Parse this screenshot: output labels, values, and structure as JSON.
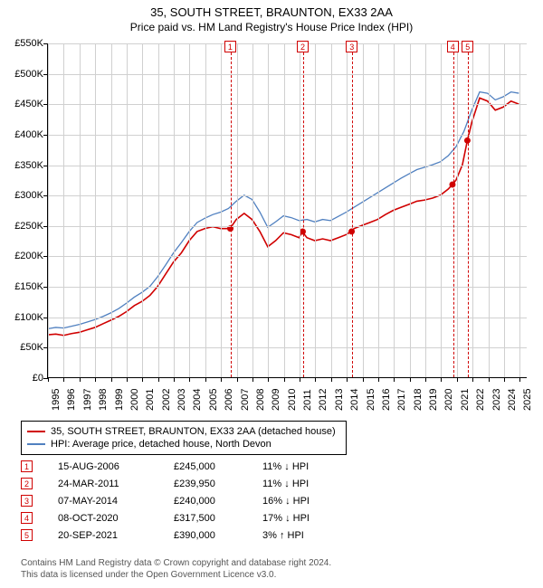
{
  "title": "35, SOUTH STREET, BRAUNTON, EX33 2AA",
  "subtitle": "Price paid vs. HM Land Registry's House Price Index (HPI)",
  "chart": {
    "type": "line",
    "x_start_year": 1995,
    "x_end_year": 2025.5,
    "xticks": [
      1995,
      1996,
      1997,
      1998,
      1999,
      2000,
      2001,
      2002,
      2003,
      2004,
      2005,
      2006,
      2007,
      2008,
      2009,
      2010,
      2011,
      2012,
      2013,
      2014,
      2015,
      2016,
      2017,
      2018,
      2019,
      2020,
      2021,
      2022,
      2023,
      2024,
      2025
    ],
    "ylim": [
      0,
      550000
    ],
    "ytick_step": 50000,
    "ylabels": [
      "£0",
      "£50K",
      "£100K",
      "£150K",
      "£200K",
      "£250K",
      "£300K",
      "£350K",
      "£400K",
      "£450K",
      "£500K",
      "£550K"
    ],
    "background_color": "#ffffff",
    "grid_color": "#d0d0d0",
    "axis_color": "#000000",
    "label_fontsize": 11,
    "title_fontsize": 13,
    "subtitle_fontsize": 12,
    "series": [
      {
        "name": "35, SOUTH STREET, BRAUNTON, EX33 2AA (detached house)",
        "color": "#d00000",
        "line_width": 1.6,
        "data": [
          [
            1995.0,
            70000
          ],
          [
            1995.5,
            71000
          ],
          [
            1996.0,
            69000
          ],
          [
            1996.5,
            72000
          ],
          [
            1997.0,
            74000
          ],
          [
            1997.5,
            78000
          ],
          [
            1998.0,
            82000
          ],
          [
            1998.5,
            88000
          ],
          [
            1999.0,
            94000
          ],
          [
            1999.5,
            100000
          ],
          [
            2000.0,
            108000
          ],
          [
            2000.5,
            118000
          ],
          [
            2001.0,
            125000
          ],
          [
            2001.5,
            135000
          ],
          [
            2002.0,
            150000
          ],
          [
            2002.5,
            170000
          ],
          [
            2003.0,
            190000
          ],
          [
            2003.5,
            205000
          ],
          [
            2004.0,
            225000
          ],
          [
            2004.5,
            240000
          ],
          [
            2005.0,
            245000
          ],
          [
            2005.5,
            248000
          ],
          [
            2006.0,
            245000
          ],
          [
            2006.6,
            245000
          ],
          [
            2007.0,
            260000
          ],
          [
            2007.5,
            270000
          ],
          [
            2008.0,
            260000
          ],
          [
            2008.5,
            240000
          ],
          [
            2009.0,
            215000
          ],
          [
            2009.5,
            225000
          ],
          [
            2010.0,
            238000
          ],
          [
            2010.5,
            235000
          ],
          [
            2011.0,
            230000
          ],
          [
            2011.2,
            239950
          ],
          [
            2011.5,
            230000
          ],
          [
            2012.0,
            225000
          ],
          [
            2012.5,
            228000
          ],
          [
            2013.0,
            225000
          ],
          [
            2013.5,
            230000
          ],
          [
            2014.0,
            235000
          ],
          [
            2014.3,
            240000
          ],
          [
            2014.5,
            245000
          ],
          [
            2015.0,
            250000
          ],
          [
            2015.5,
            255000
          ],
          [
            2016.0,
            260000
          ],
          [
            2016.5,
            268000
          ],
          [
            2017.0,
            275000
          ],
          [
            2017.5,
            280000
          ],
          [
            2018.0,
            285000
          ],
          [
            2018.5,
            290000
          ],
          [
            2019.0,
            292000
          ],
          [
            2019.5,
            295000
          ],
          [
            2020.0,
            300000
          ],
          [
            2020.5,
            310000
          ],
          [
            2020.77,
            317500
          ],
          [
            2021.0,
            325000
          ],
          [
            2021.4,
            350000
          ],
          [
            2021.72,
            390000
          ],
          [
            2022.0,
            420000
          ],
          [
            2022.5,
            460000
          ],
          [
            2023.0,
            455000
          ],
          [
            2023.5,
            440000
          ],
          [
            2024.0,
            445000
          ],
          [
            2024.5,
            455000
          ],
          [
            2025.0,
            450000
          ]
        ]
      },
      {
        "name": "HPI: Average price, detached house, North Devon",
        "color": "#5080c0",
        "line_width": 1.3,
        "data": [
          [
            1995.0,
            80000
          ],
          [
            1995.5,
            82000
          ],
          [
            1996.0,
            81000
          ],
          [
            1996.5,
            84000
          ],
          [
            1997.0,
            87000
          ],
          [
            1997.5,
            91000
          ],
          [
            1998.0,
            95000
          ],
          [
            1998.5,
            100000
          ],
          [
            1999.0,
            106000
          ],
          [
            1999.5,
            113000
          ],
          [
            2000.0,
            122000
          ],
          [
            2000.5,
            132000
          ],
          [
            2001.0,
            140000
          ],
          [
            2001.5,
            150000
          ],
          [
            2002.0,
            166000
          ],
          [
            2002.5,
            185000
          ],
          [
            2003.0,
            205000
          ],
          [
            2003.5,
            222000
          ],
          [
            2004.0,
            240000
          ],
          [
            2004.5,
            255000
          ],
          [
            2005.0,
            262000
          ],
          [
            2005.5,
            268000
          ],
          [
            2006.0,
            272000
          ],
          [
            2006.5,
            278000
          ],
          [
            2007.0,
            290000
          ],
          [
            2007.5,
            300000
          ],
          [
            2008.0,
            293000
          ],
          [
            2008.5,
            272000
          ],
          [
            2009.0,
            247000
          ],
          [
            2009.5,
            256000
          ],
          [
            2010.0,
            266000
          ],
          [
            2010.5,
            263000
          ],
          [
            2011.0,
            258000
          ],
          [
            2011.5,
            260000
          ],
          [
            2012.0,
            256000
          ],
          [
            2012.5,
            260000
          ],
          [
            2013.0,
            258000
          ],
          [
            2013.5,
            265000
          ],
          [
            2014.0,
            272000
          ],
          [
            2014.5,
            280000
          ],
          [
            2015.0,
            288000
          ],
          [
            2015.5,
            296000
          ],
          [
            2016.0,
            304000
          ],
          [
            2016.5,
            312000
          ],
          [
            2017.0,
            320000
          ],
          [
            2017.5,
            328000
          ],
          [
            2018.0,
            335000
          ],
          [
            2018.5,
            342000
          ],
          [
            2019.0,
            346000
          ],
          [
            2019.5,
            350000
          ],
          [
            2020.0,
            355000
          ],
          [
            2020.5,
            365000
          ],
          [
            2021.0,
            380000
          ],
          [
            2021.5,
            405000
          ],
          [
            2022.0,
            440000
          ],
          [
            2022.5,
            470000
          ],
          [
            2023.0,
            468000
          ],
          [
            2023.5,
            457000
          ],
          [
            2024.0,
            462000
          ],
          [
            2024.5,
            470000
          ],
          [
            2025.0,
            468000
          ]
        ]
      }
    ],
    "markers": [
      {
        "n": "1",
        "year": 2006.62,
        "price": 245000,
        "date": "15-AUG-2006",
        "delta": "11%",
        "dir": "down",
        "vs": "HPI"
      },
      {
        "n": "2",
        "year": 2011.23,
        "price": 239950,
        "date": "24-MAR-2011",
        "delta": "11%",
        "dir": "down",
        "vs": "HPI"
      },
      {
        "n": "3",
        "year": 2014.35,
        "price": 240000,
        "date": "07-MAY-2014",
        "delta": "16%",
        "dir": "down",
        "vs": "HPI"
      },
      {
        "n": "4",
        "year": 2020.77,
        "price": 317500,
        "date": "08-OCT-2020",
        "delta": "17%",
        "dir": "down",
        "vs": "HPI"
      },
      {
        "n": "5",
        "year": 2021.72,
        "price": 390000,
        "date": "20-SEP-2021",
        "delta": "3%",
        "dir": "up",
        "vs": "HPI"
      }
    ],
    "ref_line_color": "#d00000",
    "ref_box_border": "#d00000"
  },
  "legend": {
    "rows": [
      {
        "color": "#d00000",
        "label": "35, SOUTH STREET, BRAUNTON, EX33 2AA (detached house)"
      },
      {
        "color": "#5080c0",
        "label": "HPI: Average price, detached house, North Devon"
      }
    ]
  },
  "footer_lines": [
    "Contains HM Land Registry data © Crown copyright and database right 2024.",
    "This data is licensed under the Open Government Licence v3.0."
  ]
}
